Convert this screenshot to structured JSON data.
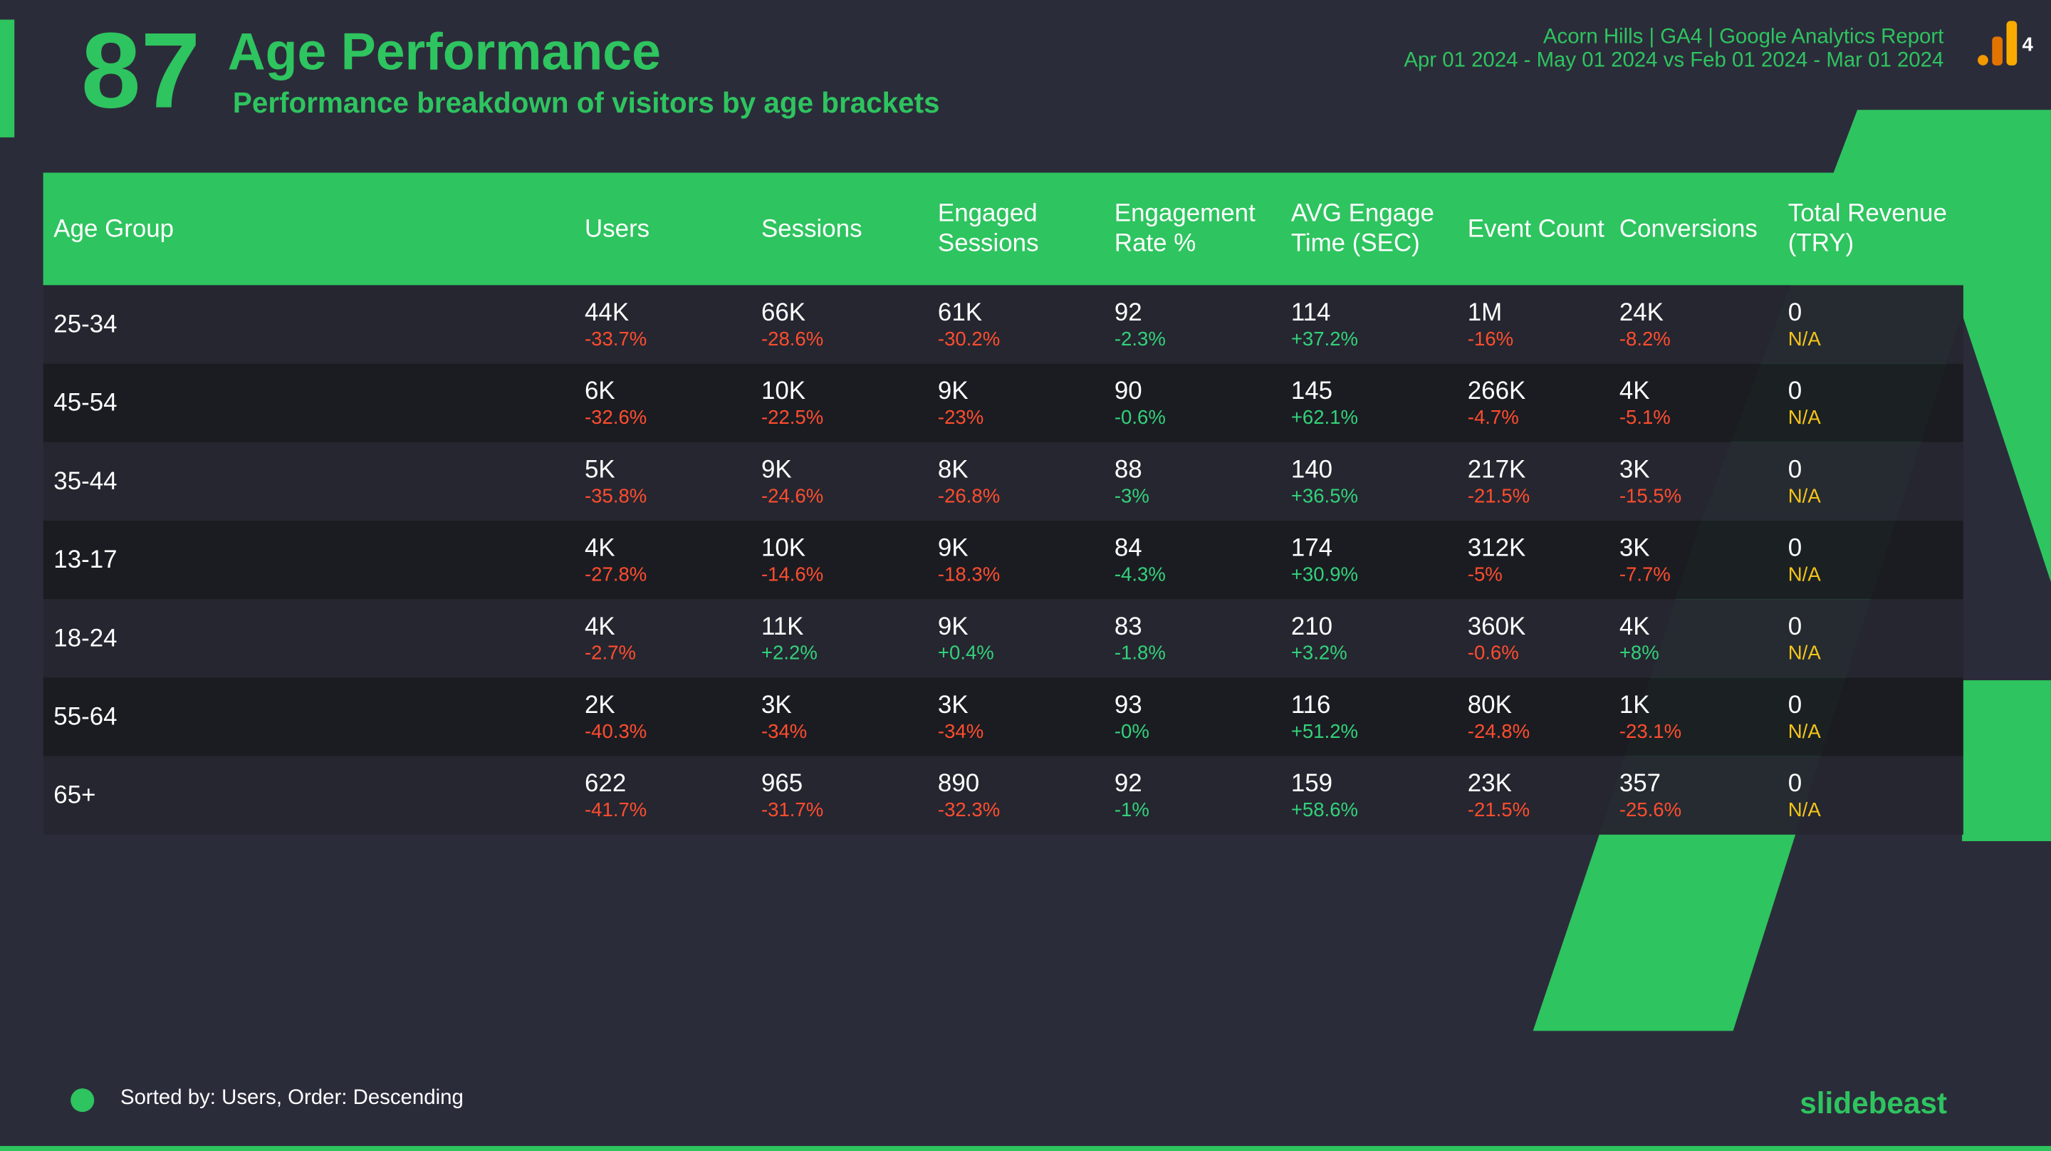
{
  "header": {
    "number": "87",
    "title": "Age Performance",
    "subtitle": "Performance breakdown of visitors by age brackets",
    "report": "Acorn Hills | GA4 | Google Analytics Report",
    "dates": "Apr 01 2024 - May 01 2024 vs Feb 01 2024 - Mar 01 2024",
    "logo_number": "4"
  },
  "colors": {
    "neg": "#ff4d2e",
    "pos": "#33d17a",
    "na": "#f5c518"
  },
  "table": {
    "columns": [
      "Age Group",
      "Users",
      "Sessions",
      "Engaged Sessions",
      "Engagement Rate %",
      "AVG Engage Time (SEC)",
      "Event Count",
      "Conversions",
      "Total Revenue (TRY)"
    ],
    "rows": [
      {
        "label": "25-34",
        "cells": [
          [
            "44K",
            "-33.7%",
            "neg"
          ],
          [
            "66K",
            "-28.6%",
            "neg"
          ],
          [
            "61K",
            "-30.2%",
            "neg"
          ],
          [
            "92",
            "-2.3%",
            "pos"
          ],
          [
            "114",
            "+37.2%",
            "pos"
          ],
          [
            "1M",
            "-16%",
            "neg"
          ],
          [
            "24K",
            "-8.2%",
            "neg"
          ],
          [
            "0",
            "N/A",
            "na"
          ]
        ]
      },
      {
        "label": "45-54",
        "cells": [
          [
            "6K",
            "-32.6%",
            "neg"
          ],
          [
            "10K",
            "-22.5%",
            "neg"
          ],
          [
            "9K",
            "-23%",
            "neg"
          ],
          [
            "90",
            "-0.6%",
            "pos"
          ],
          [
            "145",
            "+62.1%",
            "pos"
          ],
          [
            "266K",
            "-4.7%",
            "neg"
          ],
          [
            "4K",
            "-5.1%",
            "neg"
          ],
          [
            "0",
            "N/A",
            "na"
          ]
        ]
      },
      {
        "label": "35-44",
        "cells": [
          [
            "5K",
            "-35.8%",
            "neg"
          ],
          [
            "9K",
            "-24.6%",
            "neg"
          ],
          [
            "8K",
            "-26.8%",
            "neg"
          ],
          [
            "88",
            "-3%",
            "pos"
          ],
          [
            "140",
            "+36.5%",
            "pos"
          ],
          [
            "217K",
            "-21.5%",
            "neg"
          ],
          [
            "3K",
            "-15.5%",
            "neg"
          ],
          [
            "0",
            "N/A",
            "na"
          ]
        ]
      },
      {
        "label": "13-17",
        "cells": [
          [
            "4K",
            "-27.8%",
            "neg"
          ],
          [
            "10K",
            "-14.6%",
            "neg"
          ],
          [
            "9K",
            "-18.3%",
            "neg"
          ],
          [
            "84",
            "-4.3%",
            "pos"
          ],
          [
            "174",
            "+30.9%",
            "pos"
          ],
          [
            "312K",
            "-5%",
            "neg"
          ],
          [
            "3K",
            "-7.7%",
            "neg"
          ],
          [
            "0",
            "N/A",
            "na"
          ]
        ]
      },
      {
        "label": "18-24",
        "cells": [
          [
            "4K",
            "-2.7%",
            "neg"
          ],
          [
            "11K",
            "+2.2%",
            "pos"
          ],
          [
            "9K",
            "+0.4%",
            "pos"
          ],
          [
            "83",
            "-1.8%",
            "pos"
          ],
          [
            "210",
            "+3.2%",
            "pos"
          ],
          [
            "360K",
            "-0.6%",
            "neg"
          ],
          [
            "4K",
            "+8%",
            "pos"
          ],
          [
            "0",
            "N/A",
            "na"
          ]
        ]
      },
      {
        "label": "55-64",
        "cells": [
          [
            "2K",
            "-40.3%",
            "neg"
          ],
          [
            "3K",
            "-34%",
            "neg"
          ],
          [
            "3K",
            "-34%",
            "neg"
          ],
          [
            "93",
            "-0%",
            "pos"
          ],
          [
            "116",
            "+51.2%",
            "pos"
          ],
          [
            "80K",
            "-24.8%",
            "neg"
          ],
          [
            "1K",
            "-23.1%",
            "neg"
          ],
          [
            "0",
            "N/A",
            "na"
          ]
        ]
      },
      {
        "label": "65+",
        "cells": [
          [
            "622",
            "-41.7%",
            "neg"
          ],
          [
            "965",
            "-31.7%",
            "neg"
          ],
          [
            "890",
            "-32.3%",
            "neg"
          ],
          [
            "92",
            "-1%",
            "pos"
          ],
          [
            "159",
            "+58.6%",
            "pos"
          ],
          [
            "23K",
            "-21.5%",
            "neg"
          ],
          [
            "357",
            "-25.6%",
            "neg"
          ],
          [
            "0",
            "N/A",
            "na"
          ]
        ]
      }
    ]
  },
  "footer": {
    "note": "Sorted by: Users, Order: Descending",
    "brand": "slidebeast"
  }
}
